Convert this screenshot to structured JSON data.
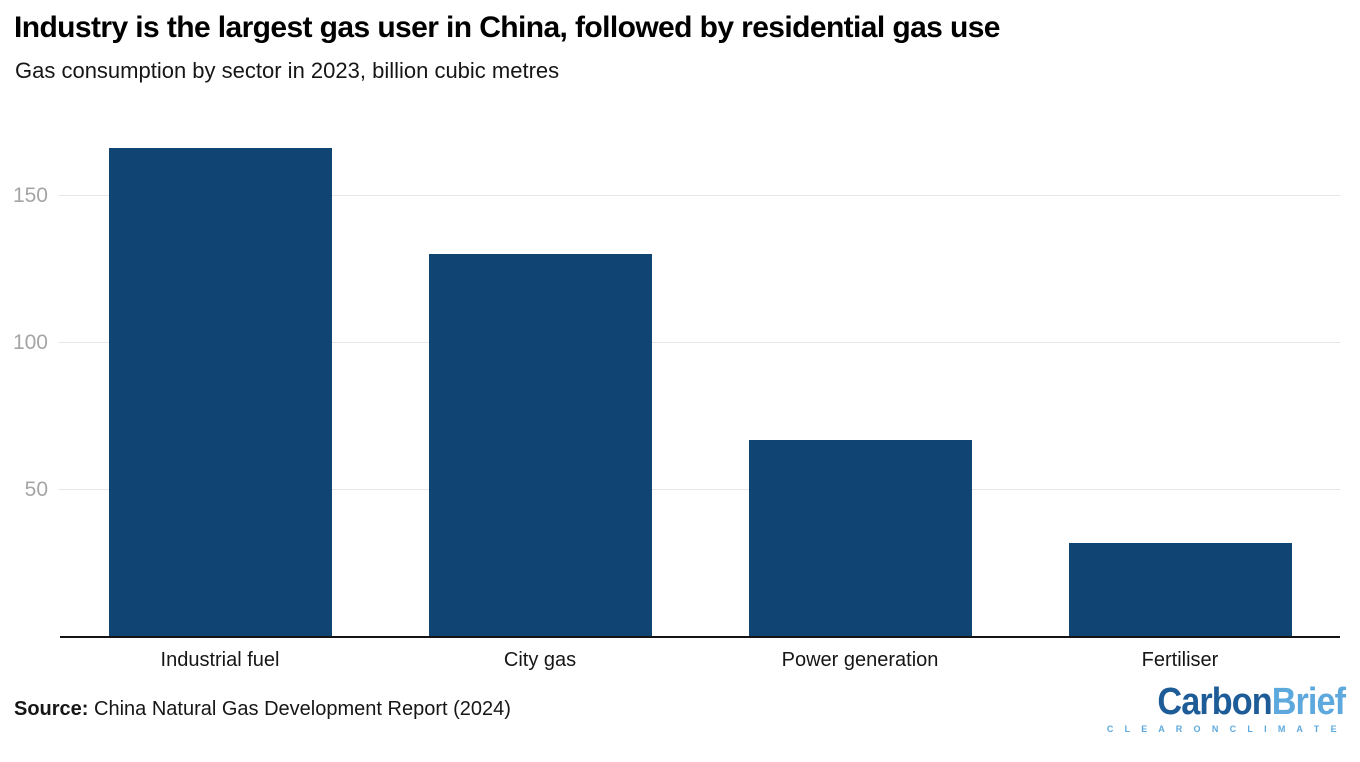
{
  "chart_data": {
    "type": "bar",
    "title": "Industry is the largest gas user in China, followed by residential gas use",
    "subtitle": "Gas consumption by sector in 2023, billion cubic metres",
    "categories": [
      "Industrial fuel",
      "City gas",
      "Power generation",
      "Fertiliser"
    ],
    "values": [
      166,
      130,
      67,
      32
    ],
    "unit": "billion cubic metres",
    "xlabel": "",
    "ylabel": "",
    "ylim": [
      0,
      176
    ],
    "yticks": [
      50,
      100,
      150
    ],
    "grid": "horizontal",
    "legend": "none",
    "bar_color": "#0f4473",
    "gridline_color": "#e7e7e7",
    "tick_label_color": "#a5a5a5",
    "axis_line_color": "#141414"
  },
  "footer": {
    "source_label": "Source:",
    "source_text": "China Natural Gas Development Report (2024)",
    "logo": {
      "part1": "Carbon",
      "part2": "Brief",
      "tagline": "C L E A R   O N   C L I M A T E",
      "part1_color": "#1e5c97",
      "part2_color": "#5da9de"
    }
  }
}
